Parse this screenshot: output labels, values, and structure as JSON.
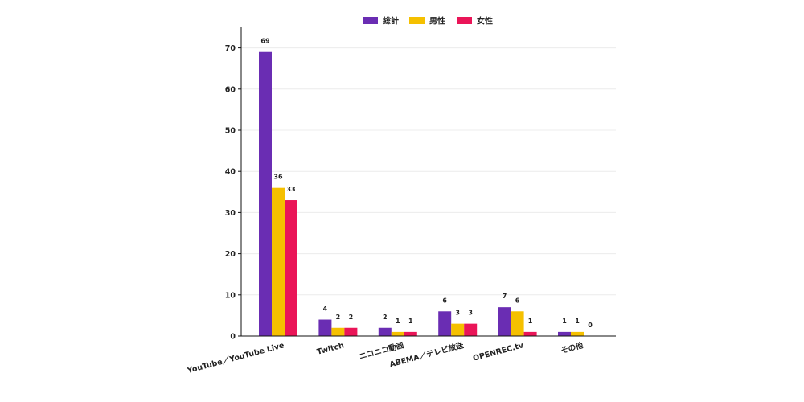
{
  "chart_data": {
    "type": "bar",
    "categories": [
      "YouTube／YouTube Live",
      "Twitch",
      "ニコニコ動画",
      "ABEMA／テレビ放送",
      "OPENREC.tv",
      "その他"
    ],
    "series": [
      {
        "name": "総計",
        "color": "#6a2db3",
        "values": [
          69,
          4,
          2,
          6,
          7,
          1
        ]
      },
      {
        "name": "男性",
        "color": "#f5c000",
        "values": [
          36,
          2,
          1,
          3,
          6,
          1
        ]
      },
      {
        "name": "女性",
        "color": "#ea1558",
        "values": [
          33,
          2,
          1,
          3,
          1,
          0
        ]
      }
    ],
    "ylim": [
      0,
      75
    ],
    "yticks": [
      0,
      10,
      20,
      30,
      40,
      50,
      60,
      70
    ],
    "grid": true,
    "legend_position": "top-center"
  }
}
